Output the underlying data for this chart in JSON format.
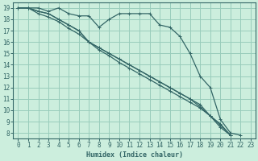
{
  "xlabel": "Humidex (Indice chaleur)",
  "bg_color": "#cceedd",
  "grid_color": "#99ccbb",
  "line_color": "#336666",
  "xlim": [
    -0.5,
    23.5
  ],
  "ylim": [
    7.5,
    19.5
  ],
  "xticks": [
    0,
    1,
    2,
    3,
    4,
    5,
    6,
    7,
    8,
    9,
    10,
    11,
    12,
    13,
    14,
    15,
    16,
    17,
    18,
    19,
    20,
    21,
    22,
    23
  ],
  "yticks": [
    8,
    9,
    10,
    11,
    12,
    13,
    14,
    15,
    16,
    17,
    18,
    19
  ],
  "series": [
    [
      19,
      19,
      19,
      18.7,
      19,
      18.5,
      18.3,
      18.3,
      17.3,
      18.0,
      18.5,
      18.5,
      18.5,
      18.5,
      17.5,
      17.3,
      16.5,
      15.0,
      13.0,
      12.0,
      9.2,
      8.0,
      7.8
    ],
    [
      19,
      19,
      18.7,
      18.5,
      18.0,
      17.5,
      17.0,
      16.0,
      15.5,
      15.0,
      14.5,
      14.0,
      13.5,
      13.0,
      12.5,
      12.0,
      11.5,
      11.0,
      10.5,
      9.5,
      8.5,
      7.8
    ],
    [
      19,
      19,
      18.7,
      18.5,
      18.0,
      17.5,
      17.0,
      16.0,
      15.3,
      14.8,
      14.2,
      13.7,
      13.2,
      12.7,
      12.2,
      11.7,
      11.2,
      10.7,
      10.2,
      9.5,
      8.8,
      7.8
    ],
    [
      19,
      19,
      18.5,
      18.2,
      17.8,
      17.2,
      16.7,
      16.0,
      15.5,
      15.0,
      14.5,
      14.0,
      13.5,
      13.0,
      12.5,
      12.0,
      11.5,
      11.0,
      10.3,
      9.5,
      8.7,
      7.8
    ]
  ],
  "series_x": [
    [
      0,
      1,
      2,
      3,
      4,
      5,
      6,
      7,
      8,
      9,
      10,
      11,
      12,
      13,
      14,
      15,
      16,
      17,
      18,
      19,
      20,
      21,
      22
    ],
    [
      0,
      1,
      2,
      3,
      4,
      5,
      6,
      7,
      8,
      9,
      10,
      11,
      12,
      13,
      14,
      15,
      16,
      17,
      18,
      19,
      20,
      21
    ],
    [
      0,
      1,
      2,
      3,
      4,
      5,
      6,
      7,
      8,
      9,
      10,
      11,
      12,
      13,
      14,
      15,
      16,
      17,
      18,
      19,
      20,
      21
    ],
    [
      0,
      1,
      2,
      3,
      4,
      5,
      6,
      7,
      8,
      9,
      10,
      11,
      12,
      13,
      14,
      15,
      16,
      17,
      18,
      19,
      20,
      21
    ]
  ],
  "marker": "+",
  "markersize": 3
}
